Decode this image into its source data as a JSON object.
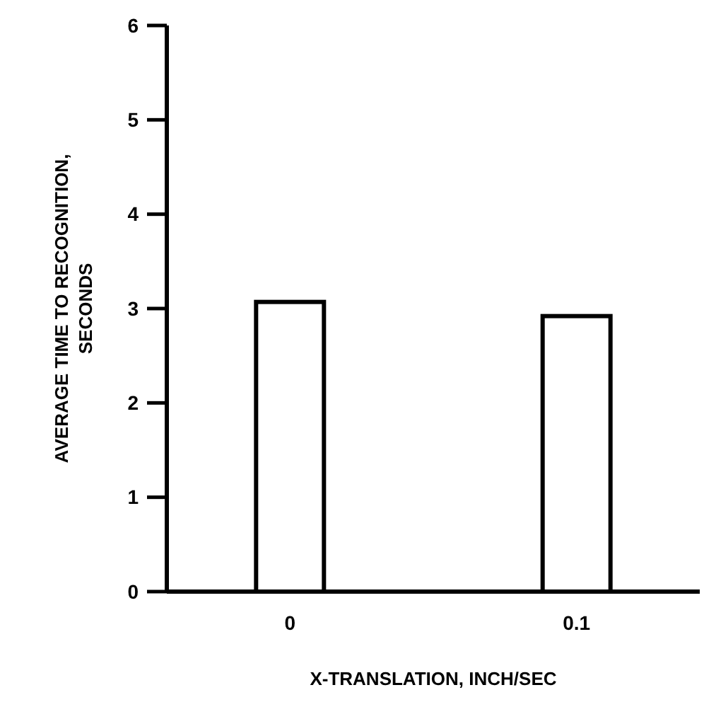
{
  "chart_data": {
    "type": "bar",
    "categories": [
      "0",
      "0.1"
    ],
    "values": [
      3.07,
      2.92
    ],
    "color": "#ffffff",
    "ylim": [
      0,
      6
    ],
    "yticks": [
      0,
      1,
      2,
      3,
      4,
      5,
      6
    ],
    "xlabel": "X-TRANSLATION, INCH/SEC",
    "ylabel": "AVERAGE TIME TO RECOGNITION,\nSECONDS",
    "grid": false
  }
}
